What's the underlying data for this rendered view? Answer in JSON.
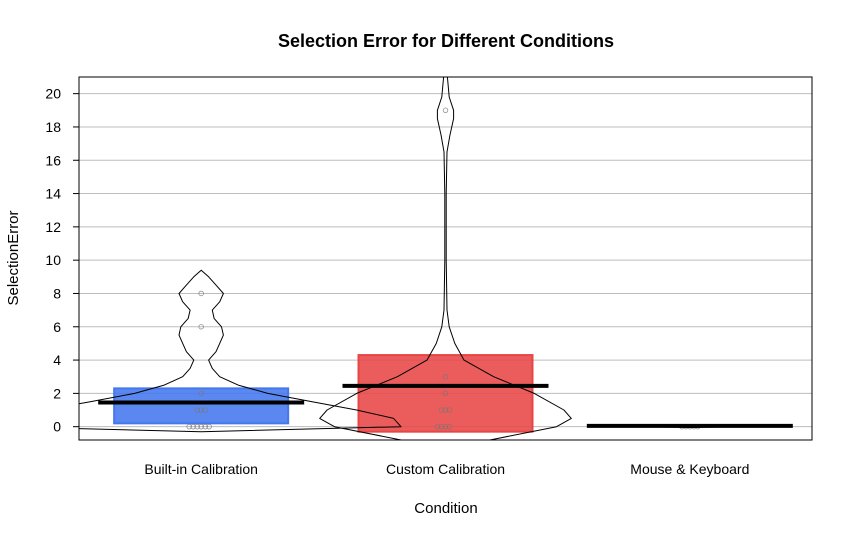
{
  "chart_data": {
    "type": "violin-box",
    "title": "Selection Error for Different Conditions",
    "xlabel": "Condition",
    "ylabel": "SelectionError",
    "ylim": [
      -0.8,
      21
    ],
    "yticks": [
      0,
      2,
      4,
      6,
      8,
      10,
      12,
      14,
      16,
      18,
      20
    ],
    "grid": "horizontal",
    "categories": [
      "Built-in Calibration",
      "Custom Calibration",
      "Mouse & Keyboard"
    ],
    "series": [
      {
        "category": "Built-in Calibration",
        "color": "#4477ee",
        "box": {
          "low": 0.2,
          "high": 2.3
        },
        "mean": 1.45,
        "points": [
          0,
          0,
          0,
          0,
          0,
          0,
          1,
          1,
          1,
          2,
          6,
          8
        ],
        "violin": [
          [
            -0.3,
            0.0
          ],
          [
            0,
            0.54
          ],
          [
            0.5,
            0.52
          ],
          [
            1,
            0.42
          ],
          [
            1.5,
            0.3
          ],
          [
            2,
            0.18
          ],
          [
            2.5,
            0.1
          ],
          [
            3,
            0.05
          ],
          [
            3.5,
            0.03
          ],
          [
            4,
            0.02
          ],
          [
            4.5,
            0.04
          ],
          [
            5,
            0.05
          ],
          [
            5.5,
            0.06
          ],
          [
            6,
            0.055
          ],
          [
            6.5,
            0.035
          ],
          [
            7,
            0.03
          ],
          [
            7.5,
            0.05
          ],
          [
            8,
            0.06
          ],
          [
            8.5,
            0.04
          ],
          [
            9,
            0.02
          ],
          [
            9.4,
            0.0
          ]
        ]
      },
      {
        "category": "Custom Calibration",
        "color": "#e84545",
        "box": {
          "low": -0.3,
          "high": 4.3
        },
        "mean": 2.45,
        "points": [
          0,
          0,
          0,
          0,
          1,
          1,
          1,
          2,
          3,
          19
        ],
        "violin": [
          [
            -0.8,
            0.12
          ],
          [
            0,
            0.3
          ],
          [
            0.5,
            0.34
          ],
          [
            1,
            0.32
          ],
          [
            2,
            0.24
          ],
          [
            3,
            0.13
          ],
          [
            4,
            0.05
          ],
          [
            5,
            0.025
          ],
          [
            6,
            0.01
          ],
          [
            7,
            0.004
          ],
          [
            10,
            0.002
          ],
          [
            14,
            0.002
          ],
          [
            16.5,
            0.004
          ],
          [
            17.5,
            0.012
          ],
          [
            18.5,
            0.022
          ],
          [
            19,
            0.022
          ],
          [
            19.8,
            0.01
          ],
          [
            21,
            0.005
          ]
        ]
      },
      {
        "category": "Mouse & Keyboard",
        "color": "#aaaaaa",
        "box": {
          "low": 0,
          "high": 0
        },
        "mean": 0.05,
        "points": [
          0,
          0,
          0,
          0,
          0
        ],
        "violin": [
          [
            -0.05,
            0.0
          ],
          [
            0,
            0.12
          ],
          [
            0.05,
            0.0
          ]
        ]
      }
    ]
  }
}
